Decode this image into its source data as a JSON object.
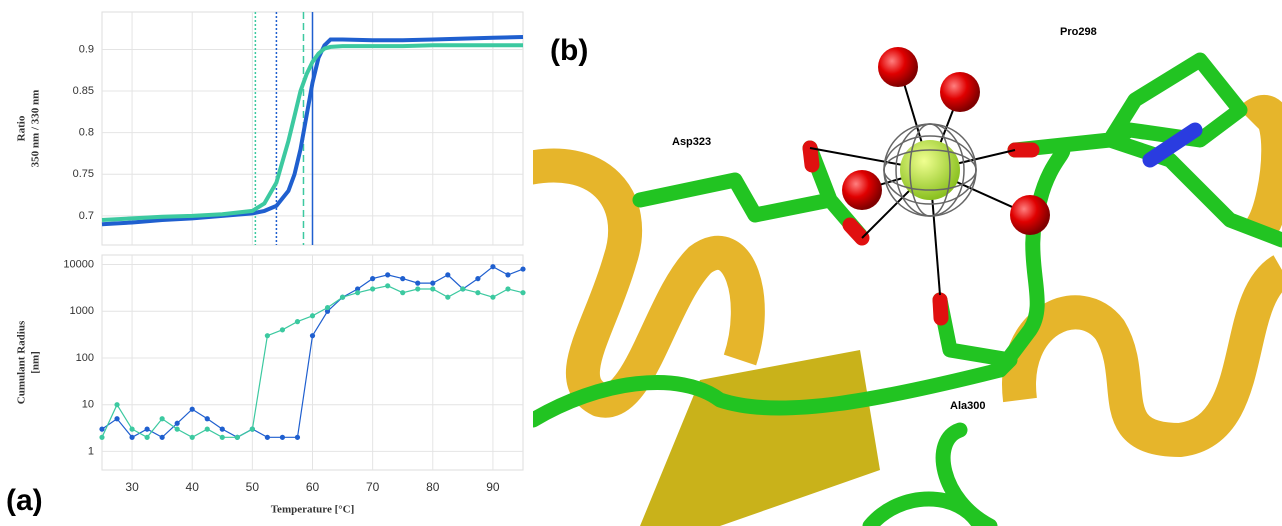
{
  "panels": {
    "a": "(a)",
    "b": "(b)"
  },
  "chart_data": [
    {
      "type": "line",
      "ylabel": [
        "Ratio",
        "350 nm / 330 nm"
      ],
      "x": [
        25,
        30,
        35,
        40,
        45,
        50,
        52,
        54,
        56,
        57,
        58,
        59,
        60,
        61,
        62,
        63,
        65,
        70,
        75,
        80,
        85,
        90,
        95
      ],
      "series": [
        {
          "color": "#1f5fcf",
          "values": [
            0.69,
            0.692,
            0.695,
            0.697,
            0.7,
            0.703,
            0.706,
            0.712,
            0.73,
            0.75,
            0.78,
            0.82,
            0.86,
            0.89,
            0.905,
            0.912,
            0.912,
            0.911,
            0.911,
            0.912,
            0.913,
            0.914,
            0.915
          ]
        },
        {
          "color": "#3cc9a0",
          "values": [
            0.695,
            0.697,
            0.699,
            0.7,
            0.702,
            0.706,
            0.715,
            0.74,
            0.79,
            0.82,
            0.85,
            0.87,
            0.885,
            0.895,
            0.901,
            0.903,
            0.904,
            0.904,
            0.904,
            0.905,
            0.905,
            0.905,
            0.905
          ]
        }
      ],
      "vlines": [
        {
          "x": 50.5,
          "color": "#3cc9a0",
          "style": "dotted"
        },
        {
          "x": 54,
          "color": "#1f5fcf",
          "style": "dotted"
        },
        {
          "x": 58.5,
          "color": "#3cc9a0",
          "style": "dashed"
        },
        {
          "x": 60,
          "color": "#1f5fcf",
          "style": "solid"
        }
      ],
      "xlim": [
        25,
        95
      ],
      "xticks": [
        30,
        40,
        50,
        60,
        70,
        80,
        90
      ],
      "ylim": [
        0.665,
        0.945
      ],
      "yticks": [
        0.7,
        0.75,
        0.8,
        0.85,
        0.9
      ],
      "grid": true
    },
    {
      "type": "scatter",
      "connect": true,
      "log_scale": true,
      "ylabel": [
        "Cumulant Radius",
        "[nm]"
      ],
      "xlabel": "Temperature [°C]",
      "x": [
        25,
        27.5,
        30,
        32.5,
        35,
        37.5,
        40,
        42.5,
        45,
        47.5,
        50,
        52.5,
        55,
        57.5,
        60,
        62.5,
        65,
        67.5,
        70,
        72.5,
        75,
        77.5,
        80,
        82.5,
        85,
        87.5,
        90,
        92.5,
        95
      ],
      "series": [
        {
          "color": "#1f5fcf",
          "values": [
            3,
            5,
            2,
            3,
            2,
            4,
            8,
            5,
            3,
            2,
            3,
            2,
            2,
            2,
            300,
            1000,
            2000,
            3000,
            5000,
            6000,
            5000,
            4000,
            4000,
            6000,
            3000,
            5000,
            9000,
            6000,
            8000
          ]
        },
        {
          "color": "#3cc9a0",
          "values": [
            2,
            10,
            3,
            2,
            5,
            3,
            2,
            3,
            2,
            2,
            3,
            300,
            400,
            600,
            800,
            1200,
            2000,
            2500,
            3000,
            3500,
            2500,
            3000,
            3000,
            2000,
            3000,
            2500,
            2000,
            3000,
            2500
          ]
        }
      ],
      "xlim": [
        25,
        95
      ],
      "xticks": [
        30,
        40,
        50,
        60,
        70,
        80,
        90
      ],
      "ylim": [
        0.4,
        16000
      ],
      "yticks": [
        1,
        10,
        100,
        1000,
        10000
      ],
      "grid": true
    }
  ],
  "residues": [
    "Pro298",
    "Asp323",
    "Ala300"
  ]
}
